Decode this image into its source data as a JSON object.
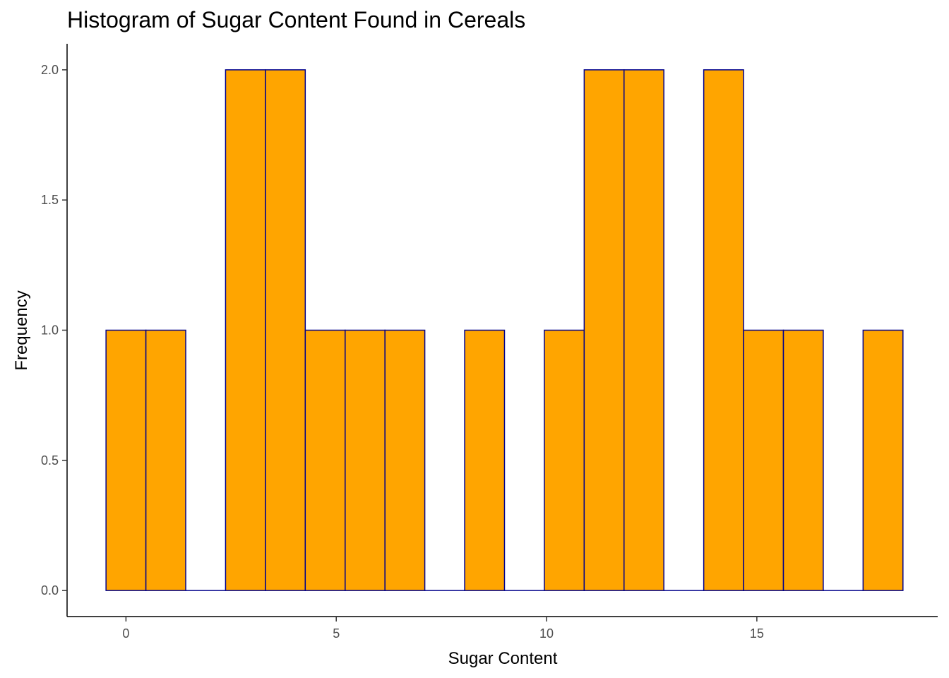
{
  "chart_data": {
    "type": "bar",
    "title": "Histogram of Sugar Content Found in Cereals",
    "xlabel": "Sugar Content",
    "ylabel": "Frequency",
    "bin_width": 0.947,
    "bins": [
      {
        "x_start": -0.474,
        "x_end": 0.474,
        "count": 1
      },
      {
        "x_start": 0.474,
        "x_end": 1.421,
        "count": 1
      },
      {
        "x_start": 1.421,
        "x_end": 2.368,
        "count": 0
      },
      {
        "x_start": 2.368,
        "x_end": 3.316,
        "count": 2
      },
      {
        "x_start": 3.316,
        "x_end": 4.263,
        "count": 2
      },
      {
        "x_start": 4.263,
        "x_end": 5.211,
        "count": 1
      },
      {
        "x_start": 5.211,
        "x_end": 6.158,
        "count": 1
      },
      {
        "x_start": 6.158,
        "x_end": 7.105,
        "count": 1
      },
      {
        "x_start": 7.105,
        "x_end": 8.053,
        "count": 0
      },
      {
        "x_start": 8.053,
        "x_end": 9.0,
        "count": 1
      },
      {
        "x_start": 9.0,
        "x_end": 9.947,
        "count": 0
      },
      {
        "x_start": 9.947,
        "x_end": 10.895,
        "count": 1
      },
      {
        "x_start": 10.895,
        "x_end": 11.842,
        "count": 2
      },
      {
        "x_start": 11.842,
        "x_end": 12.789,
        "count": 2
      },
      {
        "x_start": 12.789,
        "x_end": 13.737,
        "count": 0
      },
      {
        "x_start": 13.737,
        "x_end": 14.684,
        "count": 2
      },
      {
        "x_start": 14.684,
        "x_end": 15.632,
        "count": 1
      },
      {
        "x_start": 15.632,
        "x_end": 16.579,
        "count": 1
      },
      {
        "x_start": 16.579,
        "x_end": 17.526,
        "count": 0
      },
      {
        "x_start": 17.526,
        "x_end": 18.474,
        "count": 1
      }
    ],
    "xlim": [
      -1.4,
      19.3
    ],
    "ylim": [
      -0.1,
      2.1
    ],
    "x_ticks": [
      0,
      5,
      10,
      15
    ],
    "y_ticks": [
      0.0,
      0.5,
      1.0,
      1.5,
      2.0
    ],
    "x_tick_labels": [
      "0",
      "5",
      "10",
      "15"
    ],
    "y_tick_labels": [
      "0.0",
      "0.5",
      "1.0",
      "1.5",
      "2.0"
    ],
    "fill_color": "#FFA500",
    "outline_color": "#00008B",
    "grid": false,
    "legend": "none"
  }
}
